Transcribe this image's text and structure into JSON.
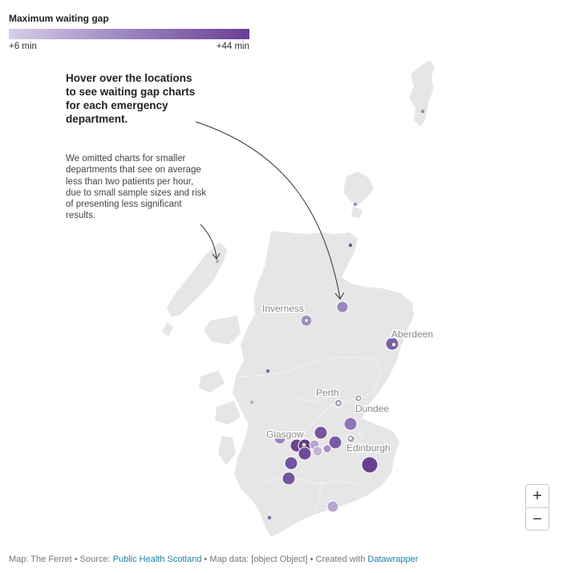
{
  "legend": {
    "title": "Maximum waiting gap",
    "min_label": "+6 min",
    "max_label": "+44 min",
    "color_min": "#d7cde6",
    "color_max": "#6a3f93"
  },
  "annotation": {
    "title": "Hover over the locations to see waiting gap charts for each emergency department.",
    "note": "We omitted charts for smaller departments that see on average less than two patients per hour, due to small sample sizes and risk of presenting less significant results."
  },
  "cities": [
    "Inverness",
    "Aberdeen",
    "Perth",
    "Dundee",
    "Glasgow",
    "Edinburgh"
  ],
  "zoom": {
    "in_label": "+",
    "out_label": "−"
  },
  "footer": {
    "map_by": "Map: The Ferret",
    "source_prefix": "Source:",
    "source": "Public Health Scotland",
    "map_data": "Map data: [object Object]",
    "created_prefix": "Created with",
    "created_with": "Datawrapper",
    "separator": "•"
  }
}
